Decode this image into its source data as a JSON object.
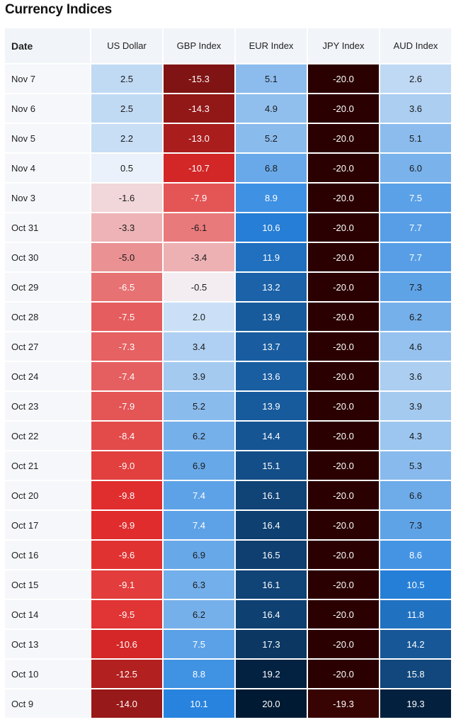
{
  "page_title": "Currency Indices",
  "chart_data": {
    "type": "heatmap",
    "title": "Currency Indices",
    "row_header": "Date",
    "columns": [
      "US Dollar",
      "GBP Index",
      "EUR Index",
      "JPY Index",
      "AUD Index"
    ],
    "value_range": [
      -20,
      20
    ],
    "colors": {
      "negative_max": "#2b0000",
      "negative_mid": "#e02a2a",
      "zero": "#f4f7fb",
      "positive_mid": "#2884e0",
      "positive_max": "#001a33"
    },
    "rows": [
      {
        "date": "Nov 7",
        "values": [
          2.5,
          -15.3,
          5.1,
          -20.0,
          2.6
        ]
      },
      {
        "date": "Nov 6",
        "values": [
          2.5,
          -14.3,
          4.9,
          -20.0,
          3.6
        ]
      },
      {
        "date": "Nov 5",
        "values": [
          2.2,
          -13.0,
          5.2,
          -20.0,
          5.1
        ]
      },
      {
        "date": "Nov 4",
        "values": [
          0.5,
          -10.7,
          6.8,
          -20.0,
          6.0
        ]
      },
      {
        "date": "Nov 3",
        "values": [
          -1.6,
          -7.9,
          8.9,
          -20.0,
          7.5
        ]
      },
      {
        "date": "Oct 31",
        "values": [
          -3.3,
          -6.1,
          10.6,
          -20.0,
          7.7
        ]
      },
      {
        "date": "Oct 30",
        "values": [
          -5.0,
          -3.4,
          11.9,
          -20.0,
          7.7
        ]
      },
      {
        "date": "Oct 29",
        "values": [
          -6.5,
          -0.5,
          13.2,
          -20.0,
          7.3
        ]
      },
      {
        "date": "Oct 28",
        "values": [
          -7.5,
          2.0,
          13.9,
          -20.0,
          6.2
        ]
      },
      {
        "date": "Oct 27",
        "values": [
          -7.3,
          3.4,
          13.7,
          -20.0,
          4.6
        ]
      },
      {
        "date": "Oct 24",
        "values": [
          -7.4,
          3.9,
          13.6,
          -20.0,
          3.6
        ]
      },
      {
        "date": "Oct 23",
        "values": [
          -7.9,
          5.2,
          13.9,
          -20.0,
          3.9
        ]
      },
      {
        "date": "Oct 22",
        "values": [
          -8.4,
          6.2,
          14.4,
          -20.0,
          4.3
        ]
      },
      {
        "date": "Oct 21",
        "values": [
          -9.0,
          6.9,
          15.1,
          -20.0,
          5.3
        ]
      },
      {
        "date": "Oct 20",
        "values": [
          -9.8,
          7.4,
          16.1,
          -20.0,
          6.6
        ]
      },
      {
        "date": "Oct 17",
        "values": [
          -9.9,
          7.4,
          16.4,
          -20.0,
          7.3
        ]
      },
      {
        "date": "Oct 16",
        "values": [
          -9.6,
          6.9,
          16.5,
          -20.0,
          8.6
        ]
      },
      {
        "date": "Oct 15",
        "values": [
          -9.1,
          6.3,
          16.1,
          -20.0,
          10.5
        ]
      },
      {
        "date": "Oct 14",
        "values": [
          -9.5,
          6.2,
          16.4,
          -20.0,
          11.8
        ]
      },
      {
        "date": "Oct 13",
        "values": [
          -10.6,
          7.5,
          17.3,
          -20.0,
          14.2
        ]
      },
      {
        "date": "Oct 10",
        "values": [
          -12.5,
          8.8,
          19.2,
          -20.0,
          15.8
        ]
      },
      {
        "date": "Oct 9",
        "values": [
          -14.0,
          10.1,
          20.0,
          -19.3,
          19.3
        ]
      }
    ]
  }
}
